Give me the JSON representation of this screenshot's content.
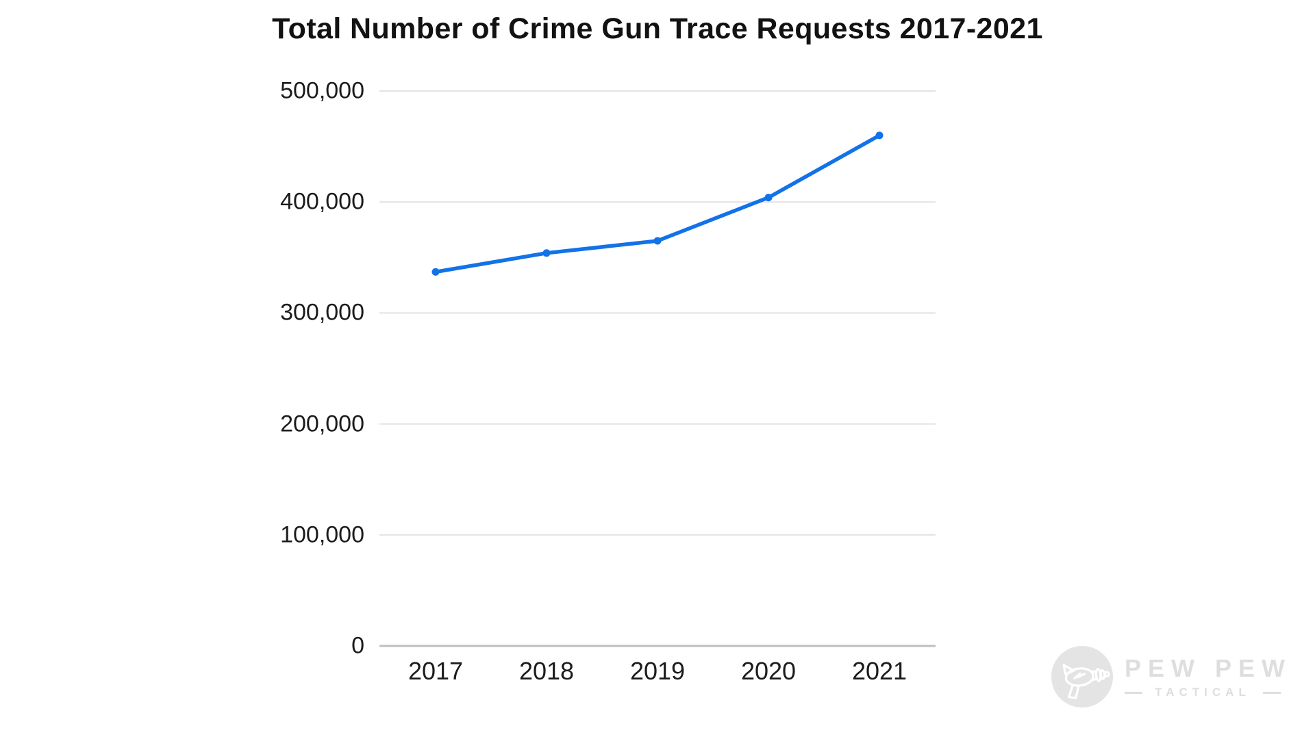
{
  "title": "Total Number of Crime Gun Trace Requests 2017-2021",
  "chart_data": {
    "type": "line",
    "title": "Total Number of Crime Gun Trace Requests 2017-2021",
    "categories": [
      "2017",
      "2018",
      "2019",
      "2020",
      "2021"
    ],
    "values": [
      337000,
      354000,
      365000,
      404000,
      460000
    ],
    "xlabel": "",
    "ylabel": "",
    "ylim": [
      0,
      500000
    ],
    "yticks": [
      0,
      100000,
      200000,
      300000,
      400000,
      500000
    ],
    "ytick_labels": [
      "0",
      "100,000",
      "200,000",
      "300,000",
      "400,000",
      "500,000"
    ],
    "grid": "horizontal-only",
    "legend": "none",
    "marker": "circle",
    "colors": {
      "line": "#1272E8",
      "gridline": "#E2E2E2",
      "axis_line": "#BFBFBF",
      "tick_label": "#1C1C1C",
      "title": "#121212"
    }
  },
  "watermark": {
    "brand_line1": "PEW PEW",
    "brand_line2": "TACTICAL",
    "icon": "ray-gun-icon",
    "colors": {
      "circle": "#E4E4E4",
      "text": "#DEDEDE",
      "icon": "#FFFFFF"
    }
  }
}
